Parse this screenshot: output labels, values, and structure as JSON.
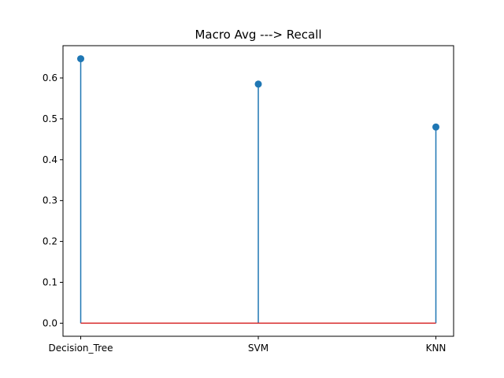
{
  "chart_data": {
    "type": "stem",
    "title": "Macro Avg ---> Recall",
    "xlabel": "",
    "ylabel": "",
    "categories": [
      "Decision_Tree",
      "SVM",
      "KNN"
    ],
    "values": [
      0.647,
      0.585,
      0.48
    ],
    "yticks": [
      "0.0",
      "0.1",
      "0.2",
      "0.3",
      "0.4",
      "0.5",
      "0.6"
    ],
    "ylim": [
      -0.032,
      0.679
    ],
    "grid": false,
    "legend": "none",
    "colors": {
      "stem": "#1f77b4",
      "baseline": "#d62728",
      "axes": "#000000"
    }
  }
}
